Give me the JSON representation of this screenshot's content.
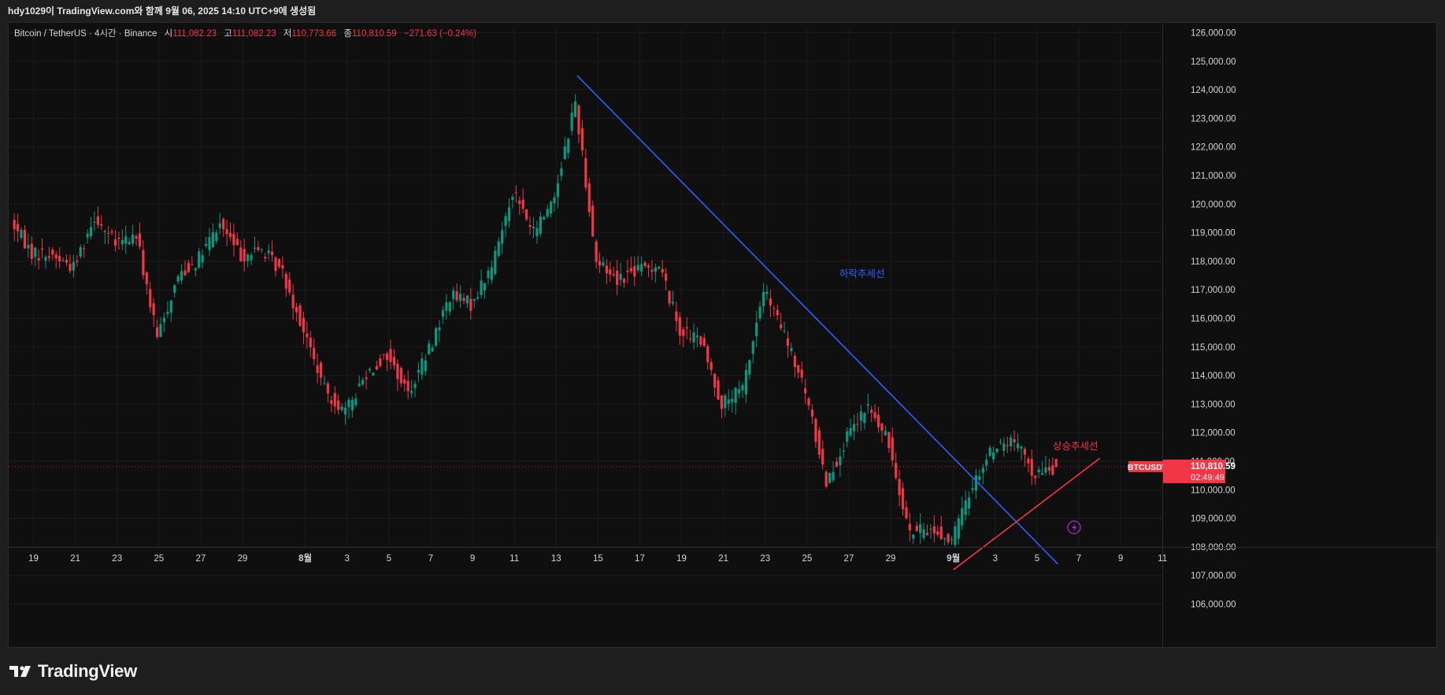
{
  "header": {
    "caption": "hdy1029이 TradingView.com와 함께 9월 06, 2025 14:10 UTC+9에 생성됨"
  },
  "legend": {
    "symbol": "Bitcoin / TetherUS · 4시간 · Binance",
    "open_label": "시",
    "open": "111,082.23",
    "high_label": "고",
    "high": "111,082.23",
    "low_label": "저",
    "low": "110,773.66",
    "close_label": "종",
    "close": "110,810.59",
    "change": "−271.63 (−0.24%)"
  },
  "price_tag": {
    "symbol": "BTCUSDT",
    "price": "110,810.59",
    "countdown": "02:49:49"
  },
  "brand": {
    "name": "TradingView"
  },
  "colors": {
    "background": "#0f0f0f",
    "up": "#089981",
    "down": "#f23645",
    "downtrend_line": "#2962ff",
    "uptrend_line": "#f23645",
    "grid": "#1c1c1c",
    "axis_text": "#d1d4dc"
  },
  "chart_data": {
    "type": "candlestick",
    "interval": "4시간",
    "y_axis": {
      "side": "right",
      "ticks": [
        "126,000.00",
        "125,000.00",
        "124,000.00",
        "123,000.00",
        "122,000.00",
        "121,000.00",
        "120,000.00",
        "119,000.00",
        "118,000.00",
        "117,000.00",
        "116,000.00",
        "115,000.00",
        "114,000.00",
        "113,000.00",
        "112,000.00",
        "111,000.00",
        "110,000.00",
        "109,000.00",
        "108,000.00",
        "107,000.00",
        "106,000.00"
      ],
      "range": [
        105500,
        126400
      ]
    },
    "x_axis": {
      "ticks": [
        "19",
        "21",
        "23",
        "25",
        "27",
        "29",
        "8월",
        "3",
        "5",
        "7",
        "9",
        "11",
        "13",
        "15",
        "17",
        "19",
        "21",
        "23",
        "25",
        "27",
        "29",
        "9월",
        "3",
        "5",
        "7",
        "9",
        "11"
      ]
    },
    "price_path": [
      {
        "date": "2025-07-18",
        "price": 119400
      },
      {
        "date": "2025-07-19",
        "price": 118300
      },
      {
        "date": "2025-07-20",
        "price": 118200
      },
      {
        "date": "2025-07-21",
        "price": 117800
      },
      {
        "date": "2025-07-22",
        "price": 119600
      },
      {
        "date": "2025-07-23",
        "price": 118600
      },
      {
        "date": "2025-07-24",
        "price": 118900
      },
      {
        "date": "2025-07-25",
        "price": 115300
      },
      {
        "date": "2025-07-26",
        "price": 117500
      },
      {
        "date": "2025-07-27",
        "price": 118100
      },
      {
        "date": "2025-07-28",
        "price": 119300
      },
      {
        "date": "2025-07-29",
        "price": 118200
      },
      {
        "date": "2025-07-30",
        "price": 118400
      },
      {
        "date": "2025-07-31",
        "price": 117600
      },
      {
        "date": "2025-08-01",
        "price": 115600
      },
      {
        "date": "2025-08-02",
        "price": 113500
      },
      {
        "date": "2025-08-03",
        "price": 112700
      },
      {
        "date": "2025-08-04",
        "price": 114100
      },
      {
        "date": "2025-08-05",
        "price": 114700
      },
      {
        "date": "2025-08-06",
        "price": 113400
      },
      {
        "date": "2025-08-07",
        "price": 114900
      },
      {
        "date": "2025-08-08",
        "price": 116800
      },
      {
        "date": "2025-08-09",
        "price": 116500
      },
      {
        "date": "2025-08-10",
        "price": 117800
      },
      {
        "date": "2025-08-11",
        "price": 120500
      },
      {
        "date": "2025-08-12",
        "price": 119000
      },
      {
        "date": "2025-08-13",
        "price": 120300
      },
      {
        "date": "2025-08-14",
        "price": 123600
      },
      {
        "date": "2025-08-15",
        "price": 118000
      },
      {
        "date": "2025-08-16",
        "price": 117400
      },
      {
        "date": "2025-08-17",
        "price": 117700
      },
      {
        "date": "2025-08-18",
        "price": 117900
      },
      {
        "date": "2025-08-19",
        "price": 115600
      },
      {
        "date": "2025-08-20",
        "price": 115200
      },
      {
        "date": "2025-08-21",
        "price": 113000
      },
      {
        "date": "2025-08-22",
        "price": 113500
      },
      {
        "date": "2025-08-23",
        "price": 117000
      },
      {
        "date": "2025-08-24",
        "price": 115400
      },
      {
        "date": "2025-08-25",
        "price": 113400
      },
      {
        "date": "2025-08-26",
        "price": 110300
      },
      {
        "date": "2025-08-27",
        "price": 111800
      },
      {
        "date": "2025-08-28",
        "price": 112900
      },
      {
        "date": "2025-08-29",
        "price": 111600
      },
      {
        "date": "2025-08-30",
        "price": 108500
      },
      {
        "date": "2025-08-31",
        "price": 108600
      },
      {
        "date": "2025-09-01",
        "price": 108200
      },
      {
        "date": "2025-09-02",
        "price": 110200
      },
      {
        "date": "2025-09-03",
        "price": 111500
      },
      {
        "date": "2025-09-04",
        "price": 111700
      },
      {
        "date": "2025-09-05",
        "price": 110500
      },
      {
        "date": "2025-09-06",
        "price": 110810.59
      }
    ],
    "trendlines": [
      {
        "name": "하락추세선",
        "color": "#2962ff",
        "from": {
          "date": "2025-08-14",
          "price": 124500
        },
        "to": {
          "date": "2025-09-06",
          "price": 107400
        }
      },
      {
        "name": "상승추세선",
        "color": "#f23645",
        "from": {
          "date": "2025-09-01",
          "price": 107200
        },
        "to": {
          "date": "2025-09-08",
          "price": 111100
        }
      }
    ],
    "current_price": 110810.59
  }
}
